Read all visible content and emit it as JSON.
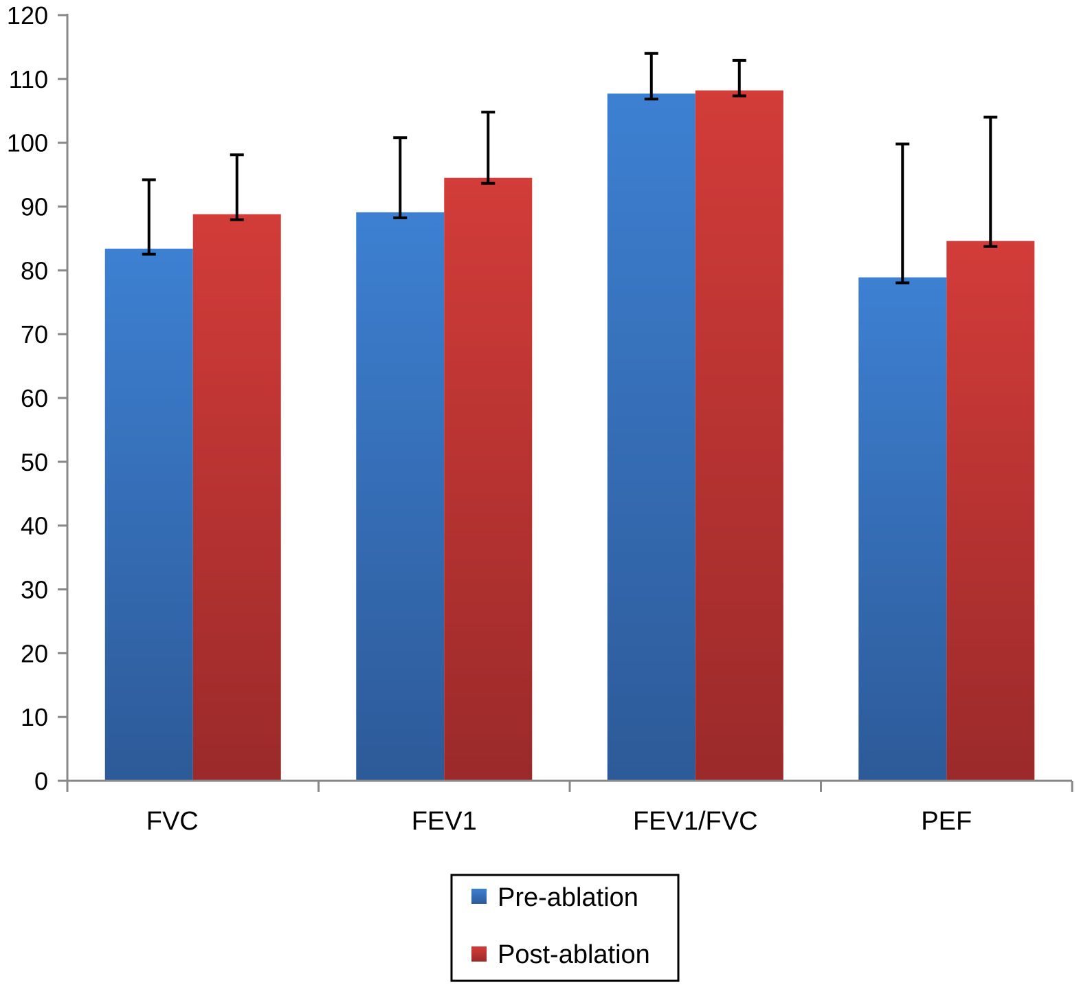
{
  "chart_data": {
    "type": "bar",
    "title": "",
    "xlabel": "",
    "ylabel": "",
    "ylim": [
      0,
      120
    ],
    "yticks": [
      0,
      10,
      20,
      30,
      40,
      50,
      60,
      70,
      80,
      90,
      100,
      110,
      120
    ],
    "grid": false,
    "legend_placement": "bottom-center",
    "categories": [
      "FVC",
      "FEV1",
      "FEV1/FVC",
      "PEF"
    ],
    "series": [
      {
        "name": "Pre-ablation",
        "color": "#3a7bcc",
        "values": [
          83.4,
          89.1,
          107.7,
          78.9
        ],
        "error_upper": [
          10.8,
          11.7,
          6.3,
          20.9
        ]
      },
      {
        "name": "Post-ablation",
        "color": "#cc3a37",
        "values": [
          88.8,
          94.5,
          108.2,
          84.6
        ],
        "error_upper": [
          9.3,
          10.3,
          4.7,
          19.4
        ]
      }
    ]
  }
}
